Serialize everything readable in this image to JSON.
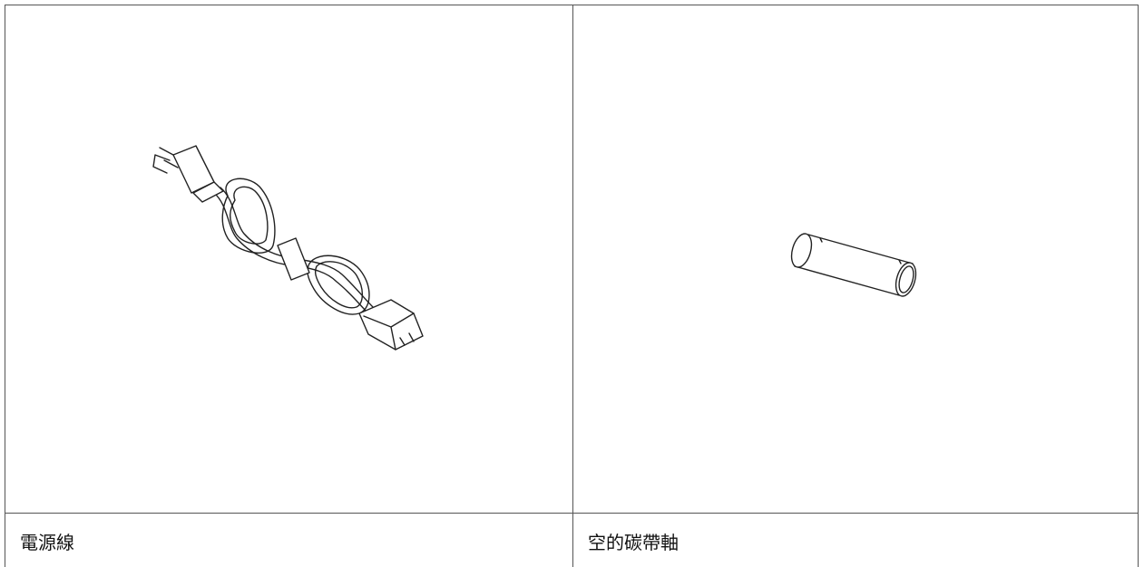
{
  "items": [
    {
      "label": "電源線"
    },
    {
      "label": "空的碳帶軸"
    }
  ]
}
